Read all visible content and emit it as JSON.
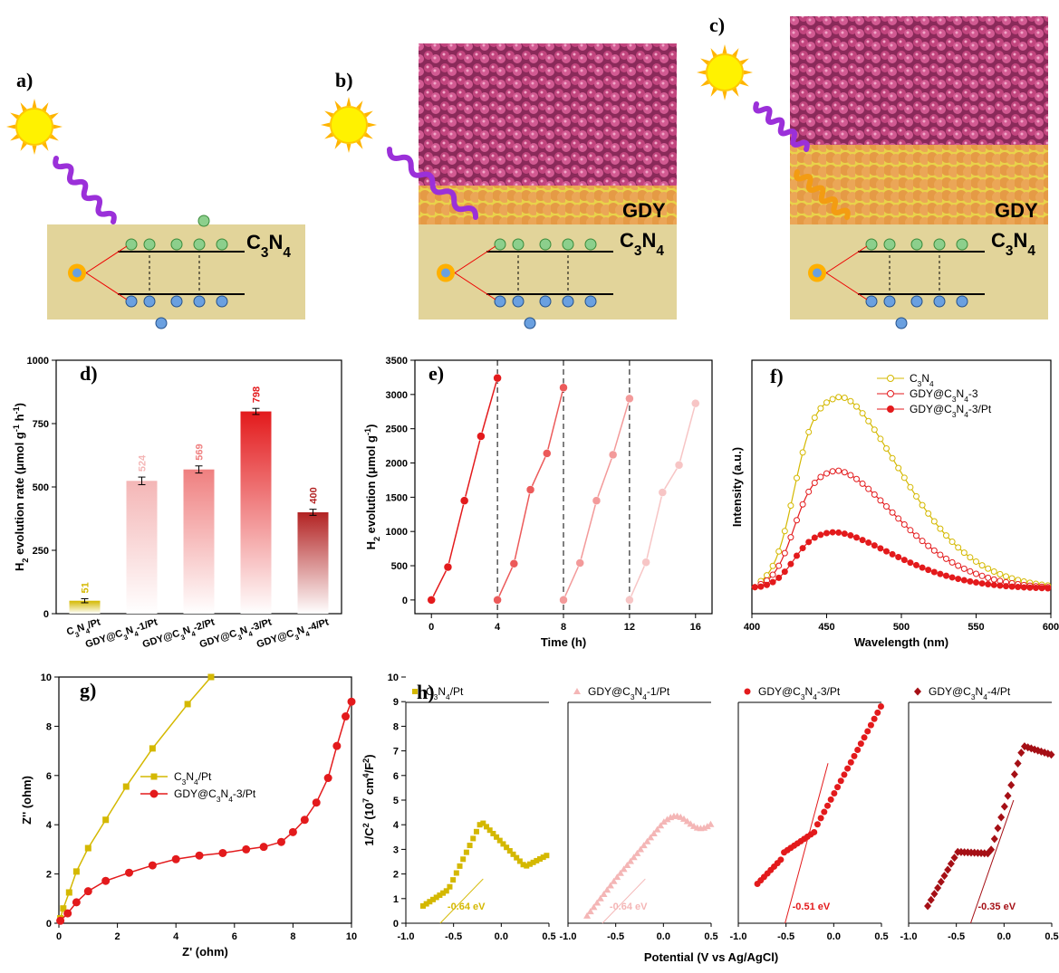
{
  "panels": {
    "a": {
      "letter": "a)",
      "material_label": "C3N4"
    },
    "b": {
      "letter": "b)",
      "label_top": "GDY",
      "label_bottom": "C3N4"
    },
    "c": {
      "letter": "c)",
      "label_top": "GDY",
      "label_bottom": "C3N4"
    },
    "d": {
      "letter": "d)"
    },
    "e": {
      "letter": "e)"
    },
    "f": {
      "letter": "f)"
    },
    "g": {
      "letter": "g)"
    },
    "h": {
      "letter": "h)"
    }
  },
  "colors": {
    "gold": "#d4b800",
    "pink_light": "#f4b6b6",
    "red": "#e31a1c",
    "dark_red": "#a50f15",
    "c3n4_bg": "#e2d49a",
    "gdy_ball": "#c2457e",
    "gdy_band": "#f0e033",
    "sun": "#fff200",
    "photon": "#9b30d9"
  },
  "chart_data": [
    {
      "id": "d",
      "type": "bar",
      "categories": [
        "C3N4/Pt",
        "GDY@C3N4-1/Pt",
        "GDY@C3N4-2/Pt",
        "GDY@C3N4-3/Pt",
        "GDY@C3N4-4/Pt"
      ],
      "values": [
        51,
        524,
        569,
        798,
        400
      ],
      "errors": [
        8,
        15,
        14,
        12,
        12
      ],
      "bar_colors": [
        "#d4b800",
        "#f4b6b6",
        "#ef7f7f",
        "#e31a1c",
        "#b22222"
      ],
      "value_labels": [
        "51",
        "524",
        "569",
        "798",
        "400"
      ],
      "ylabel": "H2 evolution rate (μmol g-1 h-1)",
      "ylim": [
        0,
        1000
      ],
      "yticks": [
        "0",
        "250",
        "500",
        "750",
        "1000"
      ]
    },
    {
      "id": "e",
      "type": "line",
      "xlabel": "Time (h)",
      "ylabel": "H2 evolution (μmol g-1)",
      "xlim": [
        -1,
        17
      ],
      "ylim": [
        -200,
        3500
      ],
      "xticks": [
        "0",
        "4",
        "8",
        "12",
        "16"
      ],
      "yticks": [
        "0",
        "500",
        "1000",
        "1500",
        "2000",
        "2500",
        "3000",
        "3500"
      ],
      "cycle_dividers": [
        4,
        8,
        12
      ],
      "series": [
        {
          "x": [
            0,
            1,
            2,
            3,
            4
          ],
          "y": [
            0,
            480,
            1450,
            2390,
            3240
          ],
          "color": "#e31a1c"
        },
        {
          "x": [
            4,
            5,
            6,
            7,
            8
          ],
          "y": [
            0,
            530,
            1610,
            2140,
            3100
          ],
          "color": "#ec5a5a"
        },
        {
          "x": [
            8,
            9,
            10,
            11,
            12
          ],
          "y": [
            0,
            540,
            1450,
            2120,
            2940
          ],
          "color": "#f39a9a"
        },
        {
          "x": [
            12,
            13,
            14,
            15,
            16
          ],
          "y": [
            0,
            550,
            1570,
            1970,
            2870
          ],
          "color": "#f7c5c5"
        }
      ]
    },
    {
      "id": "f",
      "type": "line",
      "xlabel": "Wavelength (nm)",
      "ylabel": "Intensity (a.u.)",
      "xlim": [
        400,
        600
      ],
      "xticks": [
        "400",
        "450",
        "500",
        "550",
        "600"
      ],
      "series": [
        {
          "name": "C3N4",
          "peak": 458,
          "height": 1.0,
          "color": "#d4b800",
          "marker": "open-circle"
        },
        {
          "name": "GDY@C3N4-3",
          "peak": 455,
          "height": 0.62,
          "color": "#e31a1c",
          "marker": "open-circle"
        },
        {
          "name": "GDY@C3N4-3/Pt",
          "peak": 452,
          "height": 0.3,
          "color": "#e31a1c",
          "marker": "filled-circle"
        }
      ]
    },
    {
      "id": "g",
      "type": "line",
      "xlabel": "Z' (ohm)",
      "ylabel": "Z'' (ohm)",
      "xlim": [
        0,
        10
      ],
      "ylim": [
        0,
        10
      ],
      "xticks": [
        "0",
        "2",
        "4",
        "6",
        "8",
        "10"
      ],
      "yticks": [
        "0",
        "2",
        "4",
        "6",
        "8",
        "10"
      ],
      "series": [
        {
          "name": "C3N4/Pt",
          "color": "#d4b800",
          "marker": "square",
          "x": [
            0.05,
            0.15,
            0.35,
            0.6,
            1.0,
            1.6,
            2.3,
            3.2,
            4.4,
            5.2
          ],
          "y": [
            0.2,
            0.6,
            1.25,
            2.1,
            3.05,
            4.2,
            5.55,
            7.1,
            8.9,
            10.0
          ]
        },
        {
          "name": "GDY@C3N4-3/Pt",
          "color": "#e31a1c",
          "marker": "circle",
          "x": [
            0.05,
            0.3,
            0.6,
            1.0,
            1.6,
            2.4,
            3.2,
            4.0,
            4.8,
            5.6,
            6.4,
            7.0,
            7.6,
            8.0,
            8.4,
            8.8,
            9.2,
            9.5,
            9.8,
            10.0
          ],
          "y": [
            0.1,
            0.4,
            0.85,
            1.3,
            1.72,
            2.05,
            2.35,
            2.6,
            2.75,
            2.85,
            3.0,
            3.1,
            3.3,
            3.7,
            4.2,
            4.9,
            5.9,
            7.2,
            8.4,
            9.0
          ]
        }
      ]
    },
    {
      "id": "h",
      "type": "scatter",
      "ylabel": "1/C2 (107 cm4/F2)",
      "xlabel": "Potential (V vs Ag/AgCl)",
      "ylim": [
        0,
        10
      ],
      "yticks": [
        "0",
        "1",
        "2",
        "3",
        "4",
        "5",
        "6",
        "7",
        "8",
        "9",
        "10"
      ],
      "xlim": [
        -1.0,
        0.5
      ],
      "xticks": [
        "-1.0",
        "-0.5",
        "0.0",
        "0.5"
      ],
      "series": [
        {
          "name": "C3N4/Pt",
          "color": "#d4b800",
          "marker": "square",
          "annotation": "-0.64 eV",
          "intercept": -0.64
        },
        {
          "name": "GDY@C3N4-1/Pt",
          "color": "#f4b6b6",
          "marker": "triangle",
          "annotation": "-0.64 eV",
          "intercept": -0.64
        },
        {
          "name": "GDY@C3N4-3/Pt",
          "color": "#e31a1c",
          "marker": "circle",
          "annotation": "-0.51 eV",
          "intercept": -0.51
        },
        {
          "name": "GDY@C3N4-4/Pt",
          "color": "#a50f15",
          "marker": "diamond",
          "annotation": "-0.35 eV",
          "intercept": -0.35
        }
      ]
    }
  ]
}
